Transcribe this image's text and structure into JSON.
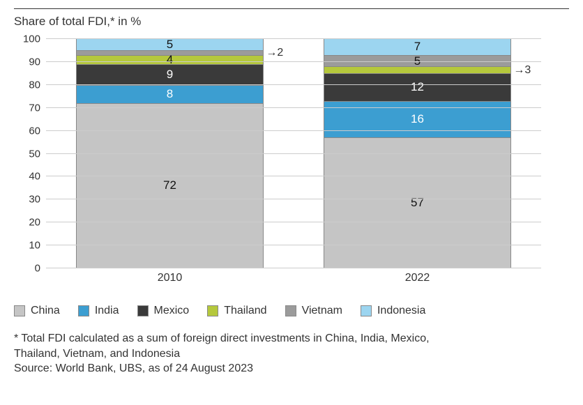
{
  "chart": {
    "type": "stacked-bar",
    "title": "Share of total FDI,* in %",
    "background_color": "#ffffff",
    "grid_color": "#cccccc",
    "axis_color": "#333333",
    "title_fontsize": 17,
    "label_fontsize": 15,
    "value_fontsize": 17,
    "ylim": [
      0,
      100
    ],
    "ytick_step": 10,
    "yticks": [
      0,
      10,
      20,
      30,
      40,
      50,
      60,
      70,
      80,
      90,
      100
    ],
    "categories": [
      "2010",
      "2022"
    ],
    "series": [
      {
        "name": "China",
        "color": "#c5c5c5"
      },
      {
        "name": "India",
        "color": "#3c9ed1"
      },
      {
        "name": "Mexico",
        "color": "#3a3a3a"
      },
      {
        "name": "Thailand",
        "color": "#b5c83c"
      },
      {
        "name": "Vietnam",
        "color": "#9b9b9b"
      },
      {
        "name": "Indonesia",
        "color": "#9cd5f0"
      }
    ],
    "bars": [
      {
        "label": "2010",
        "segments": [
          {
            "series": "China",
            "value": 72,
            "label": "72"
          },
          {
            "series": "India",
            "value": 8,
            "label": "8"
          },
          {
            "series": "Mexico",
            "value": 9,
            "label": "9"
          },
          {
            "series": "Thailand",
            "value": 4,
            "label": "4"
          },
          {
            "series": "Vietnam",
            "value": 2,
            "label": "2",
            "callout": "right"
          },
          {
            "series": "Indonesia",
            "value": 5,
            "label": "5"
          }
        ]
      },
      {
        "label": "2022",
        "segments": [
          {
            "series": "China",
            "value": 57,
            "label": "57"
          },
          {
            "series": "India",
            "value": 16,
            "label": "16"
          },
          {
            "series": "Mexico",
            "value": 12,
            "label": "12"
          },
          {
            "series": "Thailand",
            "value": 3,
            "label": "3",
            "callout": "right"
          },
          {
            "series": "Vietnam",
            "value": 5,
            "label": "5"
          },
          {
            "series": "Indonesia",
            "value": 7,
            "label": "7"
          }
        ]
      }
    ],
    "footnote_line1": "* Total FDI calculated as a sum of foreign direct investments in China, India, Mexico,",
    "footnote_line2": "Thailand, Vietnam, and Indonesia",
    "source": "Source: World Bank, UBS, as of 24 August 2023"
  }
}
